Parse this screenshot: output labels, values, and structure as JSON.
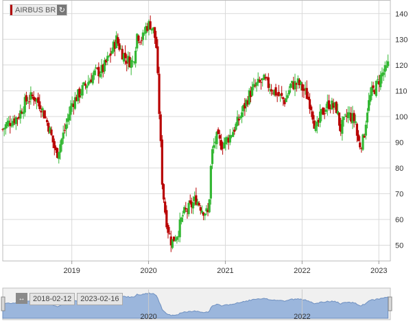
{
  "instrument": {
    "label": "AIRBUS BR"
  },
  "icons": {
    "reload": "reload-icon",
    "range_arrows": "range-arrows-icon"
  },
  "navigator": {
    "start_date": "2018-02-12",
    "end_date": "2023-02-16",
    "x_ticks": [
      "2020",
      "2022"
    ]
  },
  "colors": {
    "up": "#33b733",
    "down": "#b80000",
    "navigator_fill": "#9bb6dc",
    "grid": "#d9d9d9"
  },
  "chart_data": {
    "type": "candlestick",
    "x_ticks": [
      "2019",
      "2020",
      "2021",
      "2022",
      "2023"
    ],
    "y_ticks": [
      50,
      60,
      70,
      80,
      90,
      100,
      110,
      120,
      130,
      140
    ],
    "ylim": [
      44,
      145
    ],
    "xlim": [
      2018.1,
      2023.15
    ],
    "grid": true,
    "close_anchors": [
      [
        2018.1,
        95
      ],
      [
        2018.15,
        97
      ],
      [
        2018.3,
        100
      ],
      [
        2018.4,
        106
      ],
      [
        2018.5,
        108
      ],
      [
        2018.6,
        104
      ],
      [
        2018.7,
        96
      ],
      [
        2018.8,
        85
      ],
      [
        2018.9,
        94
      ],
      [
        2019.0,
        105
      ],
      [
        2019.1,
        109
      ],
      [
        2019.2,
        113
      ],
      [
        2019.3,
        117
      ],
      [
        2019.4,
        118
      ],
      [
        2019.5,
        124
      ],
      [
        2019.58,
        130
      ],
      [
        2019.65,
        125
      ],
      [
        2019.72,
        122
      ],
      [
        2019.8,
        121
      ],
      [
        2019.85,
        132
      ],
      [
        2019.92,
        130
      ],
      [
        2019.97,
        135
      ],
      [
        2020.02,
        136
      ],
      [
        2020.07,
        133
      ],
      [
        2020.1,
        127
      ],
      [
        2020.14,
        101
      ],
      [
        2020.18,
        73
      ],
      [
        2020.22,
        62
      ],
      [
        2020.26,
        55
      ],
      [
        2020.3,
        51
      ],
      [
        2020.38,
        55
      ],
      [
        2020.45,
        62
      ],
      [
        2020.55,
        65
      ],
      [
        2020.62,
        68
      ],
      [
        2020.7,
        64
      ],
      [
        2020.78,
        62
      ],
      [
        2020.82,
        85
      ],
      [
        2020.88,
        92
      ],
      [
        2020.95,
        89
      ],
      [
        2021.05,
        92
      ],
      [
        2021.15,
        97
      ],
      [
        2021.25,
        104
      ],
      [
        2021.32,
        109
      ],
      [
        2021.4,
        112
      ],
      [
        2021.5,
        114
      ],
      [
        2021.6,
        111
      ],
      [
        2021.7,
        108
      ],
      [
        2021.78,
        106
      ],
      [
        2021.85,
        112
      ],
      [
        2021.95,
        113
      ],
      [
        2022.05,
        109
      ],
      [
        2022.12,
        104
      ],
      [
        2022.18,
        94
      ],
      [
        2022.25,
        101
      ],
      [
        2022.35,
        105
      ],
      [
        2022.45,
        103
      ],
      [
        2022.5,
        95
      ],
      [
        2022.6,
        101
      ],
      [
        2022.7,
        98
      ],
      [
        2022.72,
        91
      ],
      [
        2022.75,
        89
      ],
      [
        2022.8,
        91
      ],
      [
        2022.85,
        103
      ],
      [
        2022.9,
        109
      ],
      [
        2022.95,
        111
      ],
      [
        2023.0,
        114
      ],
      [
        2023.05,
        117
      ],
      [
        2023.1,
        118
      ],
      [
        2023.13,
        121
      ]
    ]
  }
}
